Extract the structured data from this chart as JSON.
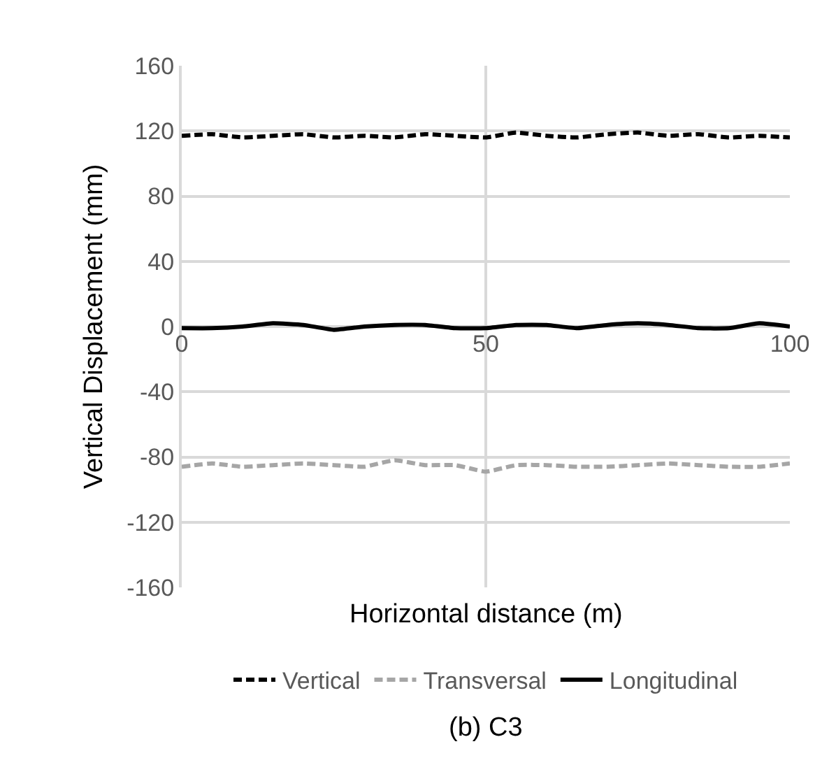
{
  "chart_data": {
    "type": "line",
    "title": "(b) C3",
    "xlabel": "Horizontal distance (m)",
    "ylabel": "Vertical Displacement (mm)",
    "x": [
      0,
      5,
      10,
      15,
      20,
      25,
      30,
      35,
      40,
      45,
      50,
      55,
      60,
      65,
      70,
      75,
      80,
      85,
      90,
      95,
      100
    ],
    "series": [
      {
        "name": "Vertical",
        "color": "#000000",
        "line_style": "dashed",
        "values": [
          117,
          118,
          116,
          117,
          118,
          116,
          117,
          116,
          118,
          117,
          116,
          119,
          117,
          116,
          118,
          119,
          117,
          118,
          116,
          117,
          116
        ]
      },
      {
        "name": "Transversal",
        "color": "#a6a6a6",
        "line_style": "dashed",
        "values": [
          -86,
          -84,
          -86,
          -85,
          -84,
          -85,
          -86,
          -82,
          -85,
          -85,
          -89,
          -85,
          -85,
          -86,
          -86,
          -85,
          -84,
          -85,
          -86,
          -86,
          -84
        ]
      },
      {
        "name": "Longitudinal",
        "color": "#000000",
        "line_style": "solid",
        "values": [
          -1,
          -1,
          0,
          2,
          1,
          -2,
          0,
          1,
          1,
          -1,
          -1,
          1,
          1,
          -1,
          1,
          2,
          1,
          -1,
          -1,
          2,
          0
        ]
      }
    ],
    "xlim": [
      0,
      100
    ],
    "xticks": [
      0,
      50,
      100
    ],
    "ylim": [
      -160,
      160
    ],
    "yticks": [
      -160,
      -120,
      -80,
      -40,
      0,
      40,
      80,
      120,
      160
    ],
    "grid": true,
    "legend": "bottom"
  }
}
